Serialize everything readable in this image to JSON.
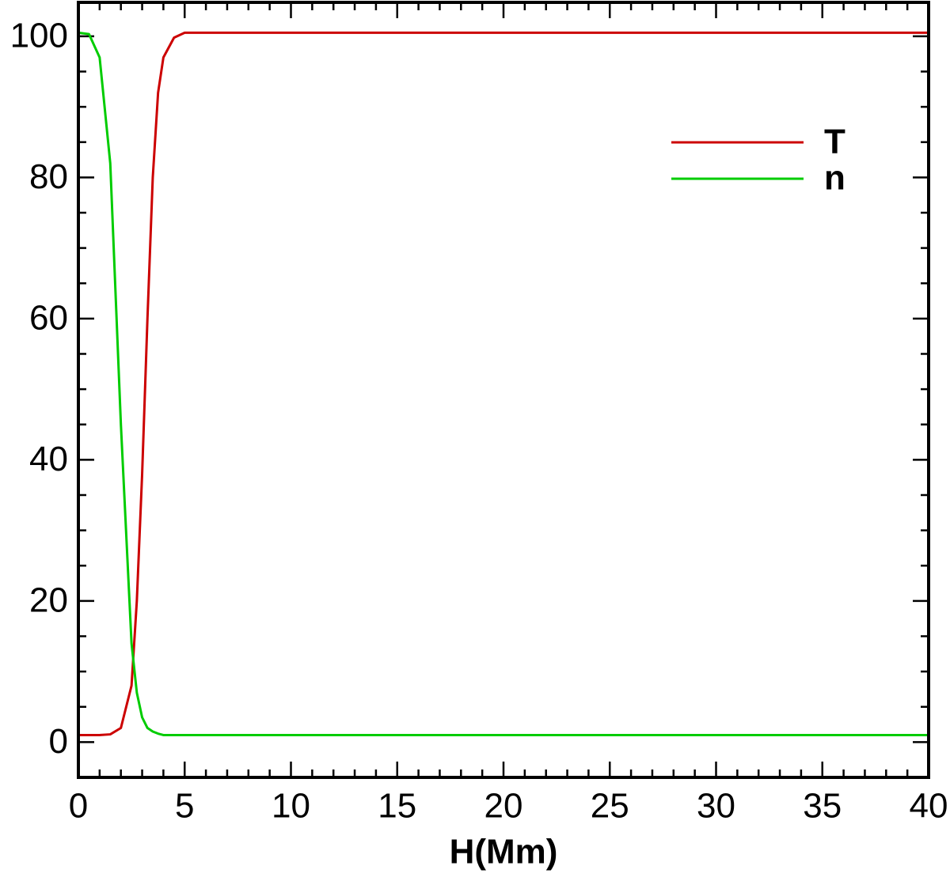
{
  "chart_data": {
    "type": "line",
    "x_label": "H(Mm)",
    "x": [
      0,
      0.5,
      1,
      1.5,
      2,
      2.5,
      2.75,
      3,
      3.25,
      3.5,
      3.75,
      4,
      4.5,
      5,
      6,
      10,
      20,
      30,
      40
    ],
    "series": [
      {
        "name": "T",
        "color": "#cc0000",
        "values": [
          1,
          1,
          1,
          1.1,
          2,
          8,
          20,
          38,
          60,
          80,
          92,
          97,
          99.8,
          100.5,
          100.5,
          100.5,
          100.5,
          100.5,
          100.5
        ]
      },
      {
        "name": "n",
        "color": "#00cc00",
        "values": [
          100.5,
          100.3,
          97,
          82,
          45,
          14,
          7,
          3.5,
          2,
          1.5,
          1.2,
          1,
          1,
          1,
          1,
          1,
          1,
          1,
          1
        ]
      }
    ],
    "xlim": [
      0,
      40
    ],
    "xticks": [
      0,
      5,
      10,
      15,
      20,
      25,
      30,
      35,
      40
    ],
    "xminorticks": [
      1,
      2,
      3,
      4,
      6,
      7,
      8,
      9,
      11,
      12,
      13,
      14,
      16,
      17,
      18,
      19,
      21,
      22,
      23,
      24,
      26,
      27,
      28,
      29,
      31,
      32,
      33,
      34,
      36,
      37,
      38,
      39
    ],
    "ylim": [
      -5,
      104.8
    ],
    "yticks": [
      0,
      20,
      40,
      60,
      80,
      100
    ],
    "yminorticks": [
      -5,
      5,
      10,
      15,
      25,
      30,
      35,
      45,
      50,
      55,
      65,
      70,
      75,
      85,
      90,
      95
    ],
    "legend": "upper right"
  }
}
